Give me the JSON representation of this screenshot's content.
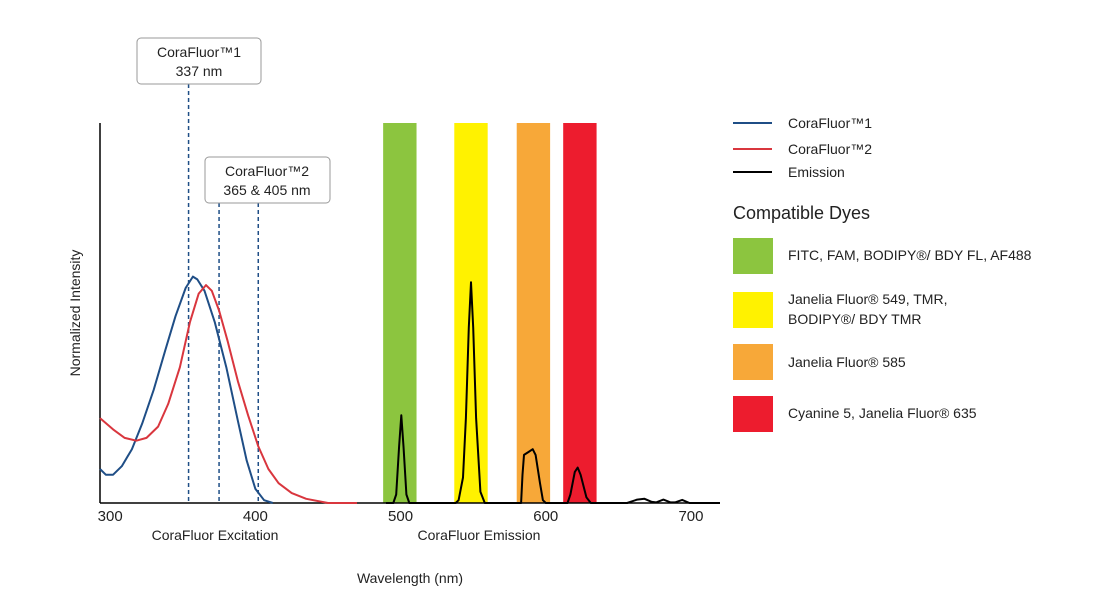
{
  "chart_data": {
    "type": "line",
    "title": "",
    "ylabel": "Normalized Intensity",
    "xlabel": "Wavelength (nm)",
    "x_section_labels": [
      "CoraFluor Excitation",
      "CoraFluor Emission"
    ],
    "xlim": [
      293,
      720
    ],
    "ylim": [
      0,
      1
    ],
    "xticks": [
      {
        "value": 300,
        "label": "300"
      },
      {
        "value": 400,
        "label": "400"
      },
      {
        "value": 500,
        "label": "500"
      },
      {
        "value": 600,
        "label": "600"
      },
      {
        "value": 700,
        "label": "700"
      }
    ],
    "grid": false,
    "legend_position": "right",
    "series": [
      {
        "name": "CoraFluor™1",
        "color": "#1f4e86",
        "points": [
          [
            293,
            0.12
          ],
          [
            297,
            0.1
          ],
          [
            302,
            0.1
          ],
          [
            308,
            0.13
          ],
          [
            315,
            0.19
          ],
          [
            322,
            0.28
          ],
          [
            330,
            0.4
          ],
          [
            338,
            0.54
          ],
          [
            345,
            0.66
          ],
          [
            352,
            0.76
          ],
          [
            357,
            0.8
          ],
          [
            360,
            0.79
          ],
          [
            365,
            0.75
          ],
          [
            372,
            0.64
          ],
          [
            380,
            0.48
          ],
          [
            388,
            0.29
          ],
          [
            394,
            0.15
          ],
          [
            400,
            0.05
          ],
          [
            406,
            0.01
          ],
          [
            412,
            0.0
          ]
        ]
      },
      {
        "name": "CoraFluor™2",
        "color": "#d9363e",
        "points": [
          [
            293,
            0.3
          ],
          [
            302,
            0.26
          ],
          [
            310,
            0.23
          ],
          [
            318,
            0.22
          ],
          [
            325,
            0.23
          ],
          [
            333,
            0.27
          ],
          [
            340,
            0.35
          ],
          [
            348,
            0.48
          ],
          [
            355,
            0.64
          ],
          [
            361,
            0.74
          ],
          [
            366,
            0.77
          ],
          [
            370,
            0.75
          ],
          [
            375,
            0.68
          ],
          [
            381,
            0.57
          ],
          [
            388,
            0.43
          ],
          [
            395,
            0.31
          ],
          [
            402,
            0.2
          ],
          [
            409,
            0.12
          ],
          [
            416,
            0.07
          ],
          [
            425,
            0.035
          ],
          [
            435,
            0.015
          ],
          [
            450,
            0.0
          ],
          [
            470,
            0.0
          ]
        ]
      },
      {
        "name": "Emission",
        "color": "#000000",
        "points": [
          [
            490,
            0.0
          ],
          [
            495,
            0.0
          ],
          [
            497,
            0.03
          ],
          [
            499,
            0.2
          ],
          [
            500.5,
            0.31
          ],
          [
            502,
            0.2
          ],
          [
            504,
            0.03
          ],
          [
            506,
            0.0
          ],
          [
            538,
            0.0
          ],
          [
            540,
            0.01
          ],
          [
            543,
            0.09
          ],
          [
            545,
            0.3
          ],
          [
            547,
            0.62
          ],
          [
            548.5,
            0.78
          ],
          [
            550,
            0.62
          ],
          [
            552,
            0.3
          ],
          [
            555,
            0.04
          ],
          [
            558,
            0.0
          ],
          [
            583,
            0.0
          ],
          [
            584,
            0.1
          ],
          [
            585,
            0.17
          ],
          [
            588,
            0.18
          ],
          [
            591,
            0.19
          ],
          [
            593,
            0.17
          ],
          [
            596,
            0.07
          ],
          [
            598,
            0.01
          ],
          [
            600,
            0.0
          ],
          [
            615,
            0.0
          ],
          [
            617,
            0.03
          ],
          [
            620,
            0.11
          ],
          [
            622,
            0.125
          ],
          [
            624,
            0.1
          ],
          [
            628,
            0.02
          ],
          [
            631,
            0.0
          ],
          [
            656,
            0.0
          ],
          [
            663,
            0.012
          ],
          [
            668,
            0.015
          ],
          [
            673,
            0.004
          ],
          [
            676,
            0.002
          ],
          [
            681,
            0.012
          ],
          [
            686,
            0.002
          ],
          [
            689,
            0.002
          ],
          [
            694,
            0.011
          ],
          [
            699,
            0.0
          ],
          [
            720,
            0.0
          ]
        ]
      }
    ],
    "dye_bands": [
      {
        "x_start": 488,
        "x_end": 511,
        "color": "#8cc53f"
      },
      {
        "x_start": 537,
        "x_end": 560,
        "color": "#fff200"
      },
      {
        "x_start": 580,
        "x_end": 603,
        "color": "#f7a839"
      },
      {
        "x_start": 612,
        "x_end": 635,
        "color": "#ed1c2e"
      }
    ],
    "dashed_markers": [
      {
        "x": 354,
        "color": "#1f4e86"
      },
      {
        "x": 375,
        "color": "#1f4e86"
      },
      {
        "x": 402,
        "color": "#1f4e86"
      }
    ]
  },
  "callouts": [
    {
      "line1": "CoraFluor™1",
      "line2": "337 nm"
    },
    {
      "line1": "CoraFluor™2",
      "line2": "365 & 405 nm"
    }
  ],
  "legend": {
    "items": [
      {
        "label": "CoraFluor™1",
        "color": "#1f4e86"
      },
      {
        "label": "CoraFluor™2",
        "color": "#d9363e"
      },
      {
        "label": "Emission",
        "color": "#000000"
      }
    ]
  },
  "dyes": {
    "heading": "Compatible Dyes",
    "items": [
      {
        "color": "#8cc53f",
        "lines": [
          "FITC, FAM, BODIPY®/ BDY FL, AF488"
        ]
      },
      {
        "color": "#fff200",
        "lines": [
          "Janelia Fluor® 549, TMR,",
          "BODIPY®/ BDY TMR"
        ]
      },
      {
        "color": "#f7a839",
        "lines": [
          "Janelia Fluor® 585"
        ]
      },
      {
        "color": "#ed1c2e",
        "lines": [
          "Cyanine 5, Janelia Fluor® 635"
        ]
      }
    ]
  }
}
